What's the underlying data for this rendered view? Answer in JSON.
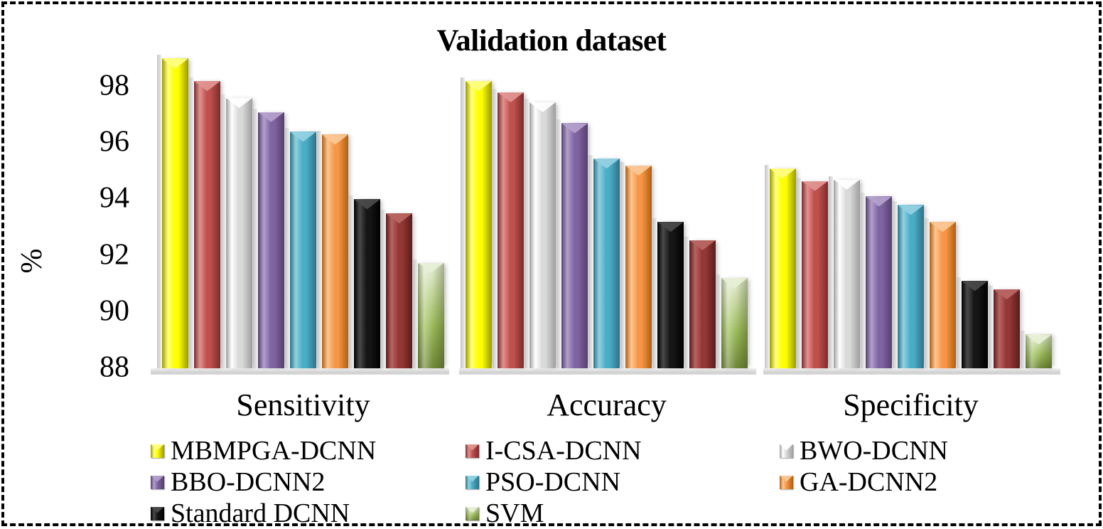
{
  "frame": {
    "border_color": "#000000",
    "border_style": "dashed"
  },
  "chart_data": {
    "type": "bar",
    "title": "Validation dataset",
    "xlabel": "",
    "ylabel": "%",
    "categories": [
      "Sensitivity",
      "Accuracy",
      "Specificity"
    ],
    "y_ticks": [
      98,
      96,
      94,
      92,
      90,
      88
    ],
    "ylim": [
      88,
      99.2
    ],
    "grid": false,
    "style_3d": true,
    "legend_position": "bottom",
    "series": [
      {
        "name": "MBMPGA-DCNN",
        "color": "#FFFF00",
        "light": "#FFFF80",
        "dark": "#9C9A00",
        "in_legend": true,
        "values": [
          99.0,
          98.2,
          95.1
        ]
      },
      {
        "name": "I-CSA-DCNN",
        "color": "#C0504D",
        "light": "#E09490",
        "dark": "#7A2D2B",
        "in_legend": true,
        "values": [
          98.2,
          97.8,
          94.65
        ]
      },
      {
        "name": "BWO-DCNN",
        "color": "#D9D9D9",
        "light": "#FFFFFF",
        "dark": "#9E9E9E",
        "in_legend": true,
        "values": [
          97.6,
          97.45,
          94.7
        ]
      },
      {
        "name": "BBO-DCNN2",
        "color": "#8064A2",
        "light": "#B3A0CC",
        "dark": "#54406E",
        "in_legend": true,
        "values": [
          97.1,
          96.7,
          94.1
        ]
      },
      {
        "name": "PSO-DCNN",
        "color": "#4BACC6",
        "light": "#92D1E1",
        "dark": "#2C7388",
        "in_legend": true,
        "values": [
          96.4,
          95.45,
          93.8
        ]
      },
      {
        "name": "GA-DCNN2",
        "color": "#F79646",
        "light": "#FBC795",
        "dark": "#B05F11",
        "in_legend": true,
        "values": [
          96.3,
          95.2,
          93.2
        ]
      },
      {
        "name": "Standard DCNN",
        "color": "#151515",
        "light": "#4A4A4A",
        "dark": "#000000",
        "in_legend": true,
        "values": [
          94.0,
          93.2,
          91.1
        ]
      },
      {
        "name": "",
        "color": "#953735",
        "light": "#B86562",
        "dark": "#571D1C",
        "in_legend": false,
        "values": [
          93.5,
          92.55,
          90.8
        ],
        "note": "ninth bar series; no legend entry visible in image"
      },
      {
        "name": "SVM",
        "color": "#9BBB59",
        "light": "#E7EFD5",
        "dark": "#71893B",
        "in_legend": true,
        "values": [
          91.75,
          91.2,
          89.2
        ],
        "vertical_gradient": true
      }
    ],
    "legend": [
      "MBMPGA-DCNN",
      "I-CSA-DCNN",
      "BWO-DCNN",
      "BBO-DCNN2",
      "PSO-DCNN",
      "GA-DCNN2",
      "Standard DCNN",
      "SVM"
    ]
  }
}
